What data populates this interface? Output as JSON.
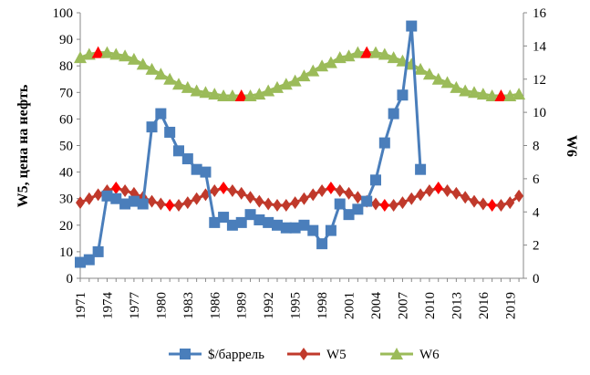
{
  "chart_data": {
    "type": "line",
    "title": "",
    "ylabel": "W5, цена на нефть",
    "y2label": "W6",
    "ylim": [
      0,
      100
    ],
    "y_ticks": [
      0,
      10,
      20,
      30,
      40,
      50,
      60,
      70,
      80,
      90,
      100
    ],
    "y2lim": [
      0,
      16
    ],
    "y2_ticks": [
      0,
      2,
      4,
      6,
      8,
      10,
      12,
      14,
      16
    ],
    "x_tick_labels": [
      "1971",
      "1974",
      "1977",
      "1980",
      "1983",
      "1986",
      "1989",
      "1992",
      "1995",
      "1998",
      "2001",
      "2004",
      "2007",
      "2010",
      "2013",
      "2016",
      "2019"
    ],
    "legend_position": "bottom",
    "series": [
      {
        "name": "$/баррель",
        "axis": "left",
        "color": "#4a7ebb",
        "marker": "square",
        "x": [
          1971,
          1972,
          1973,
          1974,
          1975,
          1976,
          1977,
          1978,
          1979,
          1980,
          1981,
          1982,
          1983,
          1984,
          1985,
          1986,
          1987,
          1988,
          1989,
          1990,
          1991,
          1992,
          1993,
          1994,
          1995,
          1996,
          1997,
          1998,
          1999,
          2000,
          2001,
          2002,
          2003,
          2004,
          2005,
          2006,
          2007,
          2008,
          2009
        ],
        "values": [
          6,
          7,
          10,
          31,
          30,
          28,
          29,
          28,
          57,
          62,
          55,
          48,
          45,
          41,
          40,
          21,
          23,
          20,
          21,
          24,
          22,
          21,
          20,
          19,
          19,
          20,
          18,
          13,
          18,
          28,
          24,
          26,
          29,
          37,
          51,
          62,
          69,
          95,
          41
        ]
      },
      {
        "name": "W5",
        "axis": "left",
        "color": "#c0392b",
        "marker": "diamond",
        "highlight_color": "#ff0000",
        "x": [
          1971,
          1972,
          1973,
          1974,
          1975,
          1976,
          1977,
          1978,
          1979,
          1980,
          1981,
          1982,
          1983,
          1984,
          1985,
          1986,
          1987,
          1988,
          1989,
          1990,
          1991,
          1992,
          1993,
          1994,
          1995,
          1996,
          1997,
          1998,
          1999,
          2000,
          2001,
          2002,
          2003,
          2004,
          2005,
          2006,
          2007,
          2008,
          2009,
          2010,
          2011,
          2012,
          2013,
          2014,
          2015,
          2016,
          2017,
          2018,
          2019,
          2020
        ],
        "values": [
          28.5,
          30,
          31.5,
          33,
          34,
          33,
          32,
          30.5,
          29,
          28,
          27.5,
          27.5,
          28.5,
          30,
          31.5,
          33,
          34,
          33,
          32,
          30.5,
          29,
          28,
          27.5,
          27.5,
          28.5,
          30,
          31.5,
          33,
          34,
          33,
          32,
          30.5,
          29,
          28,
          27.5,
          27.5,
          28.5,
          30,
          31.5,
          33,
          34,
          33,
          32,
          30.5,
          29,
          28,
          27.5,
          27.5,
          28.5,
          31
        ],
        "highlighted_x": [
          1975,
          1981,
          1987,
          1999,
          2005,
          2011,
          2017
        ]
      },
      {
        "name": "W6",
        "axis": "right",
        "color": "#9bbb59",
        "marker": "triangle",
        "highlight_color": "#ff0000",
        "x": [
          1971,
          1972,
          1973,
          1974,
          1975,
          1976,
          1977,
          1978,
          1979,
          1980,
          1981,
          1982,
          1983,
          1984,
          1985,
          1986,
          1987,
          1988,
          1989,
          1990,
          1991,
          1992,
          1993,
          1994,
          1995,
          1996,
          1997,
          1998,
          1999,
          2000,
          2001,
          2002,
          2003,
          2004,
          2005,
          2006,
          2007,
          2008,
          2009,
          2010,
          2011,
          2012,
          2013,
          2014,
          2015,
          2016,
          2017,
          2018,
          2019,
          2020
        ],
        "values": [
          13.3,
          13.5,
          13.6,
          13.6,
          13.5,
          13.4,
          13.2,
          12.9,
          12.6,
          12.3,
          12.0,
          11.7,
          11.5,
          11.3,
          11.2,
          11.1,
          11.0,
          11.0,
          11.0,
          11.0,
          11.1,
          11.3,
          11.5,
          11.7,
          11.9,
          12.2,
          12.5,
          12.8,
          13.0,
          13.3,
          13.4,
          13.6,
          13.6,
          13.6,
          13.5,
          13.3,
          13.1,
          12.9,
          12.6,
          12.3,
          12.0,
          11.8,
          11.5,
          11.3,
          11.2,
          11.1,
          11.0,
          11.0,
          11.0,
          11.1
        ],
        "highlighted_x": [
          1973,
          1989,
          2003,
          2018
        ]
      }
    ]
  }
}
